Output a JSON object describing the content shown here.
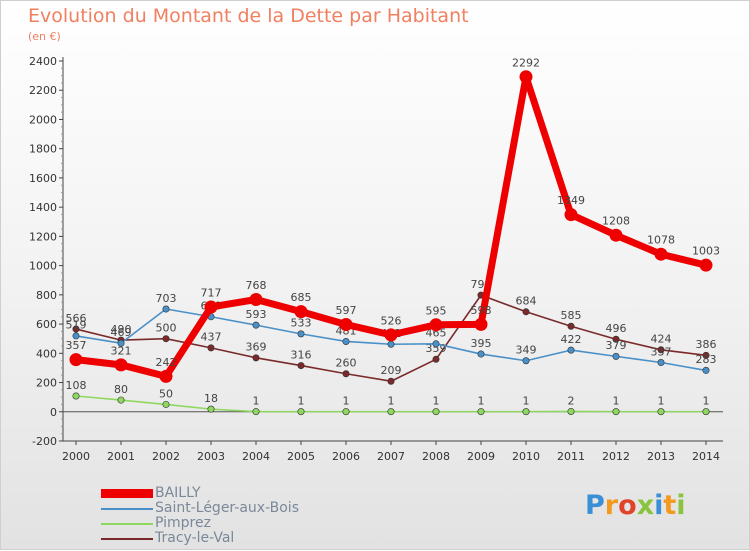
{
  "title": "Evolution du Montant de la Dette par Habitant",
  "subtitle": "(en €)",
  "logo": "Proxiti",
  "chart_data": {
    "type": "line",
    "title": "Evolution du Montant de la Dette par Habitant",
    "subtitle": "(en €)",
    "x": [
      "2000",
      "2001",
      "2002",
      "2003",
      "2004",
      "2005",
      "2006",
      "2007",
      "2008",
      "2009",
      "2010",
      "2011",
      "2012",
      "2013",
      "2014"
    ],
    "y_ticks": [
      "-200",
      "0",
      "200",
      "400",
      "600",
      "800",
      "1000",
      "1200",
      "1400",
      "1600",
      "1800",
      "2000",
      "2200",
      "2400"
    ],
    "ylim": [
      -200,
      2400
    ],
    "grid": false,
    "legend": "bottom-left",
    "series": [
      {
        "name": "Tracy-le-Val",
        "color": "#7a2a2a",
        "values": [
          566,
          490,
          500,
          437,
          369,
          316,
          260,
          209,
          359,
          798,
          684,
          585,
          496,
          424,
          386
        ],
        "labels": [
          "566",
          "490",
          "500",
          "437",
          "369",
          "316",
          "260",
          "209",
          "359",
          "798",
          "684",
          "585",
          "496",
          "424",
          "386"
        ]
      },
      {
        "name": "Saint-Léger-aux-Bois",
        "color": "#4a90c8",
        "values": [
          519,
          469,
          703,
          650,
          593,
          533,
          481,
          462,
          465,
          395,
          349,
          422,
          379,
          337,
          283
        ],
        "labels": [
          "519",
          "469",
          "703",
          "650",
          "593",
          "533",
          "481",
          "462",
          "465",
          "395",
          "349",
          "422",
          "379",
          "337",
          "283"
        ]
      },
      {
        "name": "Pimprez",
        "color": "#8fd860",
        "values": [
          108,
          80,
          50,
          18,
          1,
          1,
          1,
          1,
          1,
          1,
          1,
          2,
          1,
          1,
          1
        ],
        "labels": [
          "108",
          "80",
          "50",
          "18",
          "1",
          "1",
          "1",
          "1",
          "1",
          "1",
          "1",
          "2",
          "1",
          "1",
          "1"
        ]
      },
      {
        "name": "BAILLY",
        "color": "#ee0000",
        "values": [
          357,
          321,
          242,
          717,
          768,
          685,
          597,
          526,
          595,
          598,
          2292,
          1349,
          1208,
          1078,
          1003
        ],
        "labels": [
          "357",
          "321",
          "242",
          "717",
          "768",
          "685",
          "597",
          "526",
          "595",
          "598",
          "2292",
          "1349",
          "1208",
          "1078",
          "1003"
        ]
      }
    ],
    "legend_order": [
      "BAILLY",
      "Saint-Léger-aux-Bois",
      "Pimprez",
      "Tracy-le-Val"
    ]
  }
}
